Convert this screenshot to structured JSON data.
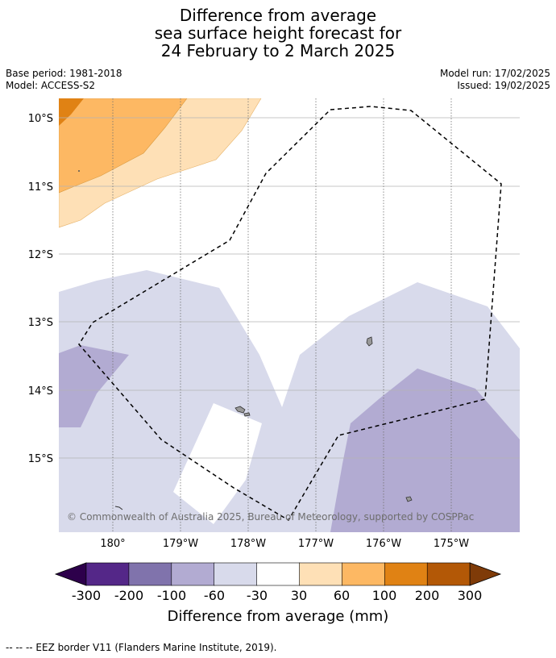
{
  "title": {
    "line1": "Difference from average",
    "line2": "sea surface height forecast for",
    "line3": "24 February to 2 March 2025"
  },
  "meta_left": {
    "base_period": "Base period: 1981-2018",
    "model": "Model: ACCESS-S2"
  },
  "meta_right": {
    "model_run": "Model run: 17/02/2025",
    "issued": "Issued: 19/02/2025"
  },
  "map": {
    "lat_labels": [
      "10°S",
      "11°S",
      "12°S",
      "13°S",
      "14°S",
      "15°S"
    ],
    "lon_labels": [
      "180°",
      "179°W",
      "178°W",
      "177°W",
      "176°W",
      "175°W"
    ],
    "copyright": "© Commonwealth of Australia 2025, Bureau of Meteorology, supported by COSPPac"
  },
  "colorbar": {
    "ticks": [
      "-300",
      "-200",
      "-100",
      "-60",
      "-30",
      "30",
      "60",
      "100",
      "200",
      "300"
    ],
    "colors": [
      "#2d004b",
      "#542788",
      "#8073ac",
      "#b2abd2",
      "#d8daeb",
      "#ffffff",
      "#fee0b6",
      "#fdb863",
      "#e08214",
      "#b35806",
      "#7f3b08"
    ],
    "label": "Difference from average (mm)"
  },
  "footer": {
    "legend": "--  --  -- EEZ border V11 (Flanders Marine Institute, 2019)."
  }
}
